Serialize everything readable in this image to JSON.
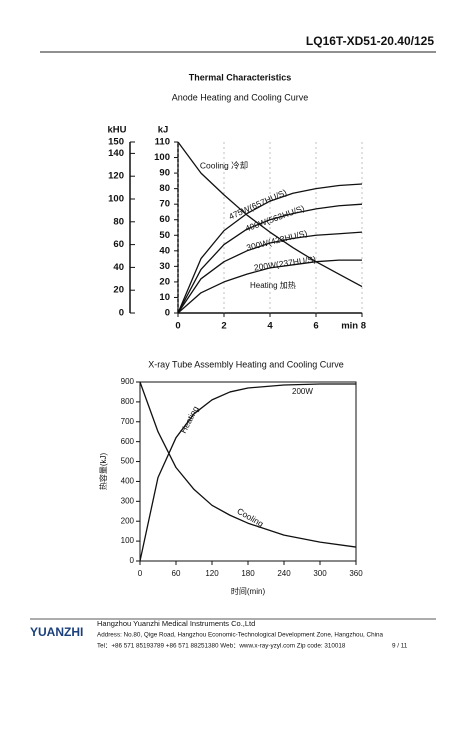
{
  "header": {
    "title": "LQ16T-XD51-20.40/125"
  },
  "section_title": "Thermal Characteristics",
  "chart_data": [
    {
      "type": "line",
      "title": "Anode Heating and Cooling Curve",
      "ylabel": "kJ",
      "y2label": "kHU",
      "x": [
        0,
        1,
        2,
        3,
        4,
        5,
        6,
        7,
        8
      ],
      "xlim": [
        0,
        8
      ],
      "xticks": [
        0,
        2,
        4,
        6,
        {
          "value": 8,
          "label": "min 8"
        }
      ],
      "ylim": [
        0,
        110
      ],
      "yticks": [
        0,
        10,
        20,
        30,
        40,
        50,
        60,
        70,
        80,
        90,
        100,
        110
      ],
      "y2lim": [
        0,
        150
      ],
      "y2ticks": [
        0,
        20,
        40,
        60,
        80,
        100,
        120,
        140,
        150
      ],
      "series": [
        {
          "name": "Cooling 冷却",
          "color": "#111111",
          "values": [
            110,
            90,
            76,
            63,
            52,
            42,
            33,
            25,
            17
          ]
        },
        {
          "name": "475W(657HU/S)",
          "color": "#111111",
          "values": [
            0,
            35,
            53,
            64,
            72,
            77,
            80,
            82,
            83
          ]
        },
        {
          "name": "400W(563HU/S)",
          "color": "#111111",
          "values": [
            0,
            28,
            44,
            54,
            60,
            64,
            67,
            69,
            70
          ]
        },
        {
          "name": "300W(423HU/S)",
          "color": "#111111",
          "values": [
            0,
            22,
            33,
            40,
            45,
            48,
            50,
            51,
            52
          ]
        },
        {
          "name": "200W(237HU/S)",
          "color": "#111111",
          "values": [
            0,
            13,
            20,
            25,
            29,
            31,
            33,
            34,
            34
          ]
        }
      ],
      "annotations": [
        "Heating 加热"
      ]
    },
    {
      "type": "line",
      "title": "X-ray Tube Assembly Heating and Cooling Curve",
      "xlabel": "时间(min)",
      "ylabel": "热容量(kJ)",
      "x": [
        0,
        30,
        60,
        90,
        120,
        150,
        180,
        240,
        300,
        360
      ],
      "xlim": [
        0,
        360
      ],
      "xticks": [
        0,
        60,
        120,
        180,
        240,
        300,
        360
      ],
      "ylim": [
        0,
        900
      ],
      "yticks": [
        0,
        100,
        200,
        300,
        400,
        500,
        600,
        700,
        800,
        900
      ],
      "series": [
        {
          "name": "Heating",
          "color": "#111111",
          "values": [
            0,
            420,
            620,
            740,
            810,
            850,
            870,
            885,
            890,
            890
          ]
        },
        {
          "name": "Cooling",
          "color": "#111111",
          "values": [
            900,
            650,
            470,
            360,
            280,
            230,
            190,
            130,
            95,
            70
          ]
        }
      ],
      "annotations": [
        "200W"
      ]
    }
  ],
  "footer": {
    "logo": "YUANZHI",
    "company": "Hangzhou Yuanzhi Medical Instruments Co.,Ltd",
    "address": "Address: No.80, Qige Road, Hangzhou Economic-Technological Development Zone, Hangzhou, China",
    "contact": "Tel：+86 571 85193789 +86 571 88251380   Web：www.x-ray-yzyl.com   Zip code: 310018",
    "page": "9 / 11"
  }
}
